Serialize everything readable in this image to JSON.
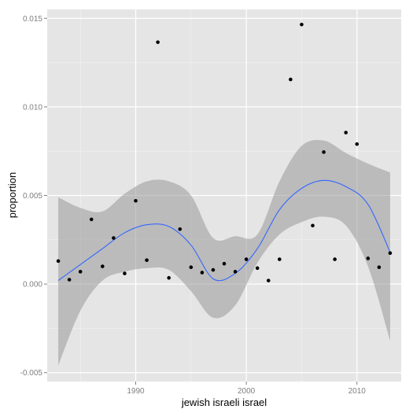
{
  "chart_data": {
    "type": "scatter",
    "title": "",
    "xlabel": "jewish israeli israel",
    "ylabel": "proportion",
    "xlim": [
      1982,
      2014
    ],
    "ylim": [
      -0.0055,
      0.0155
    ],
    "x_ticks": [
      1990,
      2000,
      2010
    ],
    "x_tick_labels": [
      "1990",
      "2000",
      "2010"
    ],
    "y_ticks": [
      -0.005,
      0.0,
      0.005,
      0.01,
      0.015
    ],
    "y_tick_labels": [
      "-0.005",
      "0.000",
      "0.005",
      "0.010",
      "0.015"
    ],
    "grid": true,
    "legend": "none",
    "colors": {
      "panel_background": "#e5e5e5",
      "grid_major": "#ffffff",
      "points": "#000000",
      "smooth_line": "#3366ff",
      "confidence_band": "#999999"
    },
    "points": {
      "x": [
        1983,
        1984,
        1985,
        1986,
        1987,
        1988,
        1989,
        1990,
        1991,
        1992,
        1993,
        1994,
        1995,
        1996,
        1997,
        1998,
        1999,
        2000,
        2001,
        2002,
        2003,
        2004,
        2005,
        2006,
        2007,
        2008,
        2009,
        2010,
        2011,
        2012,
        2013
      ],
      "y": [
        0.0013,
        0.00025,
        0.0007,
        0.00365,
        0.001,
        0.0026,
        0.0006,
        0.0047,
        0.00135,
        0.01365,
        0.00035,
        0.0031,
        0.00095,
        0.00065,
        0.0008,
        0.00115,
        0.0007,
        0.0014,
        0.0009,
        0.0002,
        0.0014,
        0.01155,
        0.01465,
        0.0033,
        0.00745,
        0.0014,
        0.00855,
        0.0079,
        0.00145,
        0.00095,
        0.00175
      ]
    },
    "smooth": {
      "x": [
        1983,
        1985,
        1987,
        1989,
        1991,
        1993,
        1995,
        1997,
        1999,
        2001,
        2003,
        2005,
        2007,
        2009,
        2011,
        2013
      ],
      "fit": [
        0.0002,
        0.0011,
        0.002,
        0.0029,
        0.00335,
        0.00325,
        0.0022,
        0.0003,
        0.0006,
        0.002,
        0.0042,
        0.0054,
        0.00585,
        0.0055,
        0.0045,
        0.0018
      ],
      "lower": [
        -0.0046,
        -0.0015,
        0.0002,
        0.0007,
        0.0009,
        0.0008,
        -0.0004,
        -0.0019,
        -0.0012,
        0.0012,
        0.0028,
        0.0035,
        0.0038,
        0.0033,
        0.001,
        -0.0032
      ],
      "upper": [
        0.0049,
        0.0043,
        0.0041,
        0.0051,
        0.0058,
        0.0058,
        0.005,
        0.0026,
        0.0027,
        0.0028,
        0.0058,
        0.0078,
        0.0081,
        0.0074,
        0.0068,
        0.0063
      ]
    }
  }
}
